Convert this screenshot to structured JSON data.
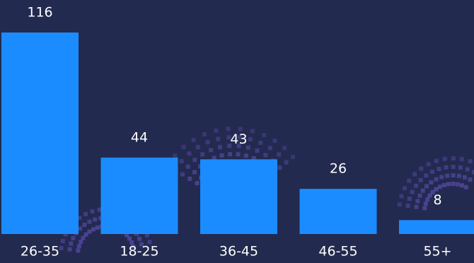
{
  "chart_data": {
    "type": "bar",
    "categories": [
      "26-35",
      "18-25",
      "36-45",
      "46-55",
      "55+"
    ],
    "values": [
      116,
      44,
      43,
      26,
      8
    ],
    "color": "#1a8cff"
  }
}
